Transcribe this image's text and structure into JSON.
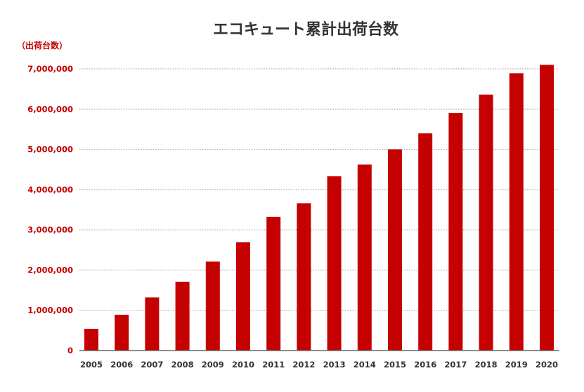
{
  "chart_data": {
    "type": "bar",
    "title": "エコキュート累計出荷台数",
    "ylabel": "（出荷台数）",
    "xlabel": "",
    "categories": [
      "2005",
      "2006",
      "2007",
      "2008",
      "2009",
      "2010",
      "2011",
      "2012",
      "2013",
      "2014",
      "2015",
      "2016",
      "2017",
      "2018",
      "2019",
      "2020"
    ],
    "values": [
      540000,
      890000,
      1320000,
      1710000,
      2210000,
      2690000,
      3320000,
      3660000,
      4330000,
      4620000,
      5000000,
      5400000,
      5900000,
      6360000,
      6890000,
      7100000
    ],
    "ylim": [
      0,
      7000000
    ],
    "yticks": [
      {
        "value": 0,
        "label": "0"
      },
      {
        "value": 1000000,
        "label": "1,000,000"
      },
      {
        "value": 2000000,
        "label": "2,000,000"
      },
      {
        "value": 3000000,
        "label": "3,000,000"
      },
      {
        "value": 4000000,
        "label": "4,000,000"
      },
      {
        "value": 5000000,
        "label": "5,000,000"
      },
      {
        "value": 6000000,
        "label": "6,000,000"
      },
      {
        "value": 7000000,
        "label": "7,000,000"
      }
    ],
    "grid": true,
    "colors": {
      "bar": "#c50000",
      "axis_text": "#c50000",
      "tick_text": "#333333",
      "title": "#333333",
      "grid": "#999999",
      "baseline": "#666666"
    }
  }
}
